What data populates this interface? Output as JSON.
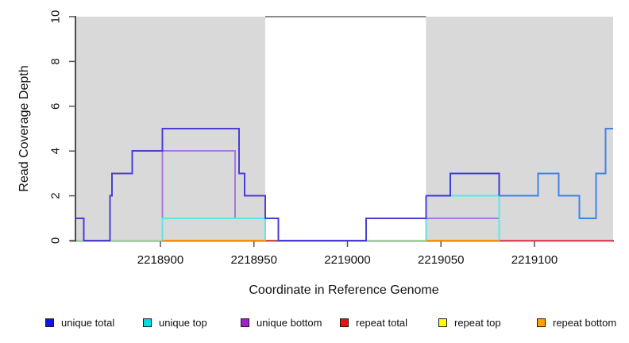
{
  "figure": {
    "xlabel": "Coordinate in Reference Genome",
    "ylabel": "Read Coverage Depth"
  },
  "legend": {
    "items": [
      {
        "label": "unique total",
        "color": "#1414e0"
      },
      {
        "label": "unique top",
        "color": "#00dddd"
      },
      {
        "label": "unique bottom",
        "color": "#a020d0"
      },
      {
        "label": "repeat total",
        "color": "#ee1010"
      },
      {
        "label": "repeat top",
        "color": "#ffff00"
      },
      {
        "label": "repeat bottom",
        "color": "#ffa000"
      }
    ]
  },
  "chart_data": {
    "type": "line",
    "subtype": "step-coverage",
    "title": "",
    "xlabel": "Coordinate in Reference Genome",
    "ylabel": "Read Coverage Depth",
    "xlim": [
      2218855,
      2219142
    ],
    "ylim": [
      0,
      10
    ],
    "yticks": [
      "0",
      "2",
      "4",
      "6",
      "8",
      "10"
    ],
    "ytick_values": [
      0,
      2,
      4,
      6,
      8,
      10
    ],
    "xticks": [
      "2218900",
      "2218950",
      "2219000",
      "2219050",
      "2219100"
    ],
    "xtick_values": [
      2218900,
      2218950,
      2219000,
      2219050,
      2219100
    ],
    "grid": false,
    "legend_position": "bottom",
    "shaded_regions": [
      {
        "start": 2218855,
        "end": 2218956,
        "color": "#d9d9d9"
      },
      {
        "start": 2219042,
        "end": 2219142,
        "color": "#d9d9d9"
      }
    ],
    "clipped_top_line": {
      "start": 2218956,
      "end": 2219042,
      "value": 10,
      "color": "#8c8c8c"
    },
    "series": [
      {
        "name": "unique total",
        "steps": [
          [
            2218855,
            1
          ],
          [
            2218859,
            0
          ],
          [
            2218873,
            2
          ],
          [
            2218874,
            3
          ],
          [
            2218885,
            4
          ],
          [
            2218901,
            5
          ],
          [
            2218942,
            3
          ],
          [
            2218945,
            2
          ],
          [
            2218956,
            1
          ],
          [
            2218963,
            0
          ],
          [
            2219010,
            1
          ],
          [
            2219042,
            2
          ],
          [
            2219055,
            3
          ],
          [
            2219081,
            2
          ],
          [
            2219102,
            3
          ],
          [
            2219113,
            2
          ],
          [
            2219124,
            1
          ],
          [
            2219133,
            3
          ],
          [
            2219138,
            5
          ]
        ],
        "color_stops": [
          {
            "until": 2219042,
            "color": "#4b3ed2"
          },
          {
            "until": 2219081,
            "color": "#3c3cdc"
          },
          {
            "until": 2219142,
            "color": "#3f82e8"
          }
        ],
        "draw_zero": true
      },
      {
        "name": "unique top",
        "steps": [
          [
            2218855,
            0
          ],
          [
            2218901,
            1
          ],
          [
            2218956,
            0
          ],
          [
            2219042,
            2
          ],
          [
            2219081,
            0
          ]
        ],
        "color_stops": [
          {
            "until": 2219142,
            "color": "#5ce6e6"
          }
        ],
        "draw_zero": false
      },
      {
        "name": "unique bottom",
        "steps": [
          [
            2218855,
            0
          ],
          [
            2218901,
            4
          ],
          [
            2218940,
            1
          ],
          [
            2218956,
            0
          ],
          [
            2219010,
            1
          ],
          [
            2219081,
            0
          ]
        ],
        "color_stops": [
          {
            "until": 2219142,
            "color": "#ab76e0"
          }
        ],
        "draw_zero": false
      }
    ],
    "zero_line_segments": [
      {
        "start": 2218855,
        "end": 2218901,
        "color": "#9fd49f",
        "series": "unique top + repeat top overlap"
      },
      {
        "start": 2218901,
        "end": 2218956,
        "color": "#ff8c00",
        "series": "repeat bottom"
      },
      {
        "start": 2218956,
        "end": 2218962,
        "color": "#e04444",
        "series": "repeat total"
      },
      {
        "start": 2219010,
        "end": 2219042,
        "color": "#9fd49f",
        "series": "unique top + repeat top overlap"
      },
      {
        "start": 2219042,
        "end": 2219081,
        "color": "#ff8c00",
        "series": "repeat bottom"
      },
      {
        "start": 2219081,
        "end": 2219142,
        "color": "#e04858",
        "series": "repeat total"
      }
    ]
  }
}
